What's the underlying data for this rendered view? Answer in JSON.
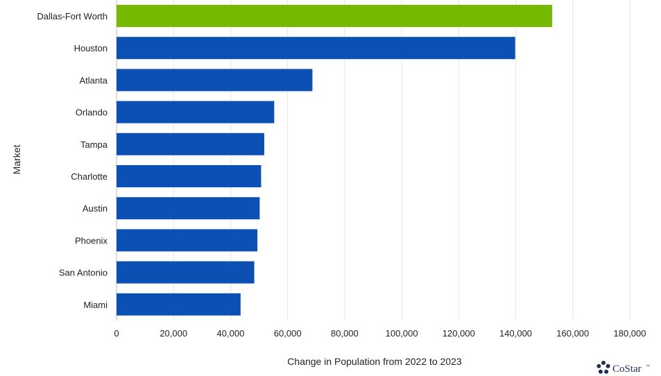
{
  "chart_data": {
    "type": "bar",
    "orientation": "horizontal",
    "title": "",
    "xlabel": "Change in Population from 2022 to 2023",
    "ylabel": "Market",
    "categories": [
      "Dallas-Fort Worth",
      "Houston",
      "Atlanta",
      "Orlando",
      "Tampa",
      "Charlotte",
      "Austin",
      "Phoenix",
      "San Antonio",
      "Miami"
    ],
    "values": [
      152800,
      139800,
      68700,
      55300,
      51800,
      50700,
      50200,
      49400,
      48300,
      43500
    ],
    "colors": [
      "#77b800",
      "#0b50b2",
      "#0b50b2",
      "#0b50b2",
      "#0b50b2",
      "#0b50b2",
      "#0b50b2",
      "#0b50b2",
      "#0b50b2",
      "#0b50b2"
    ],
    "highlight_color": "#77b800",
    "bar_color": "#0b50b2",
    "xlim": [
      0,
      180000
    ],
    "xticks": [
      0,
      20000,
      40000,
      60000,
      80000,
      100000,
      120000,
      140000,
      160000,
      180000
    ],
    "xtick_labels": [
      "0",
      "20,000",
      "40,000",
      "60,000",
      "80,000",
      "100,000",
      "120,000",
      "140,000",
      "160,000",
      "180,000"
    ],
    "grid": "vertical",
    "legend": "none"
  },
  "branding": {
    "logo_text": "CoStar",
    "logo_mark": "™",
    "logo_icon": "costar-star-icon",
    "logo_color": "#1f2d4f"
  }
}
